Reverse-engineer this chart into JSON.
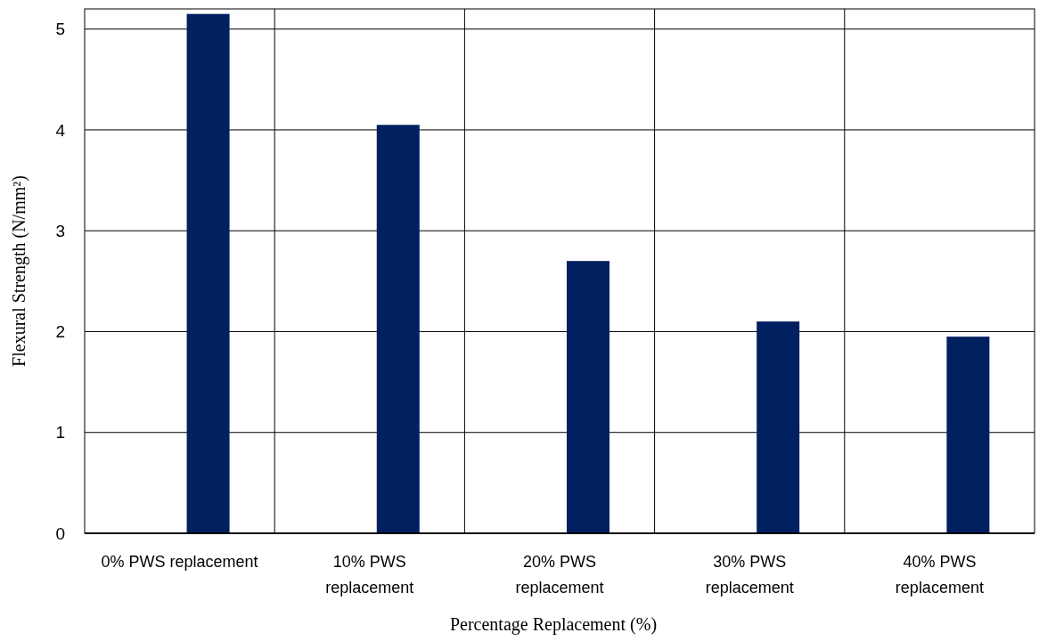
{
  "chart_data": {
    "type": "bar",
    "xlabel": "Percentage Replacement (%)",
    "ylabel": "Flexural Strength (N/mm²)",
    "categories": [
      "0% PWS replacement",
      "10% PWS replacement",
      "20% PWS replacement",
      "30% PWS replacement",
      "40% PWS replacement"
    ],
    "values": [
      5.15,
      4.05,
      2.7,
      2.1,
      1.95
    ],
    "color": "#002060",
    "ylim": [
      0,
      5.2
    ],
    "yticks": [
      0,
      1,
      2,
      3,
      4,
      5
    ],
    "grid": true
  }
}
